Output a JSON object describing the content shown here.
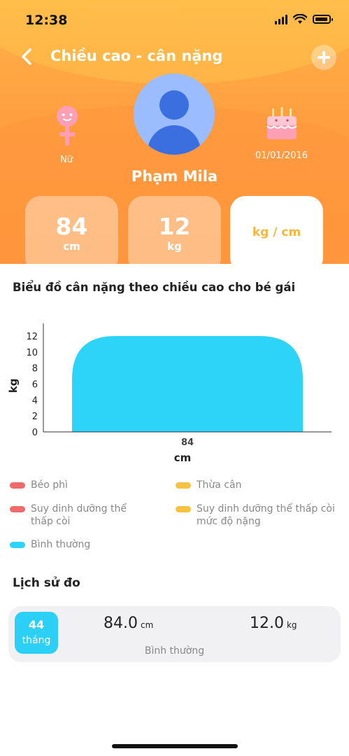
{
  "status_bar": {
    "time": "12:38"
  },
  "header": {
    "title": "Chiều cao - cân nặng",
    "gender_label": "Nữ",
    "dob": "01/01/2016",
    "name": "Phạm Mila"
  },
  "stats": {
    "height_value": "84",
    "height_unit": "cm",
    "weight_value": "12",
    "weight_unit": "kg",
    "unit_toggle": "kg / cm"
  },
  "chart_title": "Biểu đồ cân nặng theo chiều cao cho bé gái",
  "chart_data": {
    "type": "area",
    "x_categories": [
      "84"
    ],
    "values": [
      12
    ],
    "xlabel": "cm",
    "ylabel": "kg",
    "ylim": [
      0,
      12
    ],
    "y_ticks": [
      "0",
      "2",
      "4",
      "6",
      "8",
      "10",
      "12"
    ],
    "fill_color": "#2dd4f7"
  },
  "legend": [
    {
      "label": "Béo phì",
      "color": "#ef6b6b"
    },
    {
      "label": "Thừa cân",
      "color": "#f5c242"
    },
    {
      "label": "Suy dinh dưỡng thể thấp còi",
      "color": "#ef6b6b"
    },
    {
      "label": "Suy dinh dưỡng thể thấp còi mức độ nặng",
      "color": "#f5c242"
    },
    {
      "label": "Bình thường",
      "color": "#2dd4f7"
    }
  ],
  "history": {
    "title": "Lịch sử đo",
    "items": [
      {
        "age_num": "44",
        "age_unit": "tháng",
        "height": "84.0",
        "height_unit": "cm",
        "weight": "12.0",
        "weight_unit": "kg",
        "status": "Bình thường"
      }
    ]
  },
  "colors": {
    "accent": "#ff9f40",
    "badge": "#2ccff5",
    "toggle_text": "#f5b73a"
  }
}
